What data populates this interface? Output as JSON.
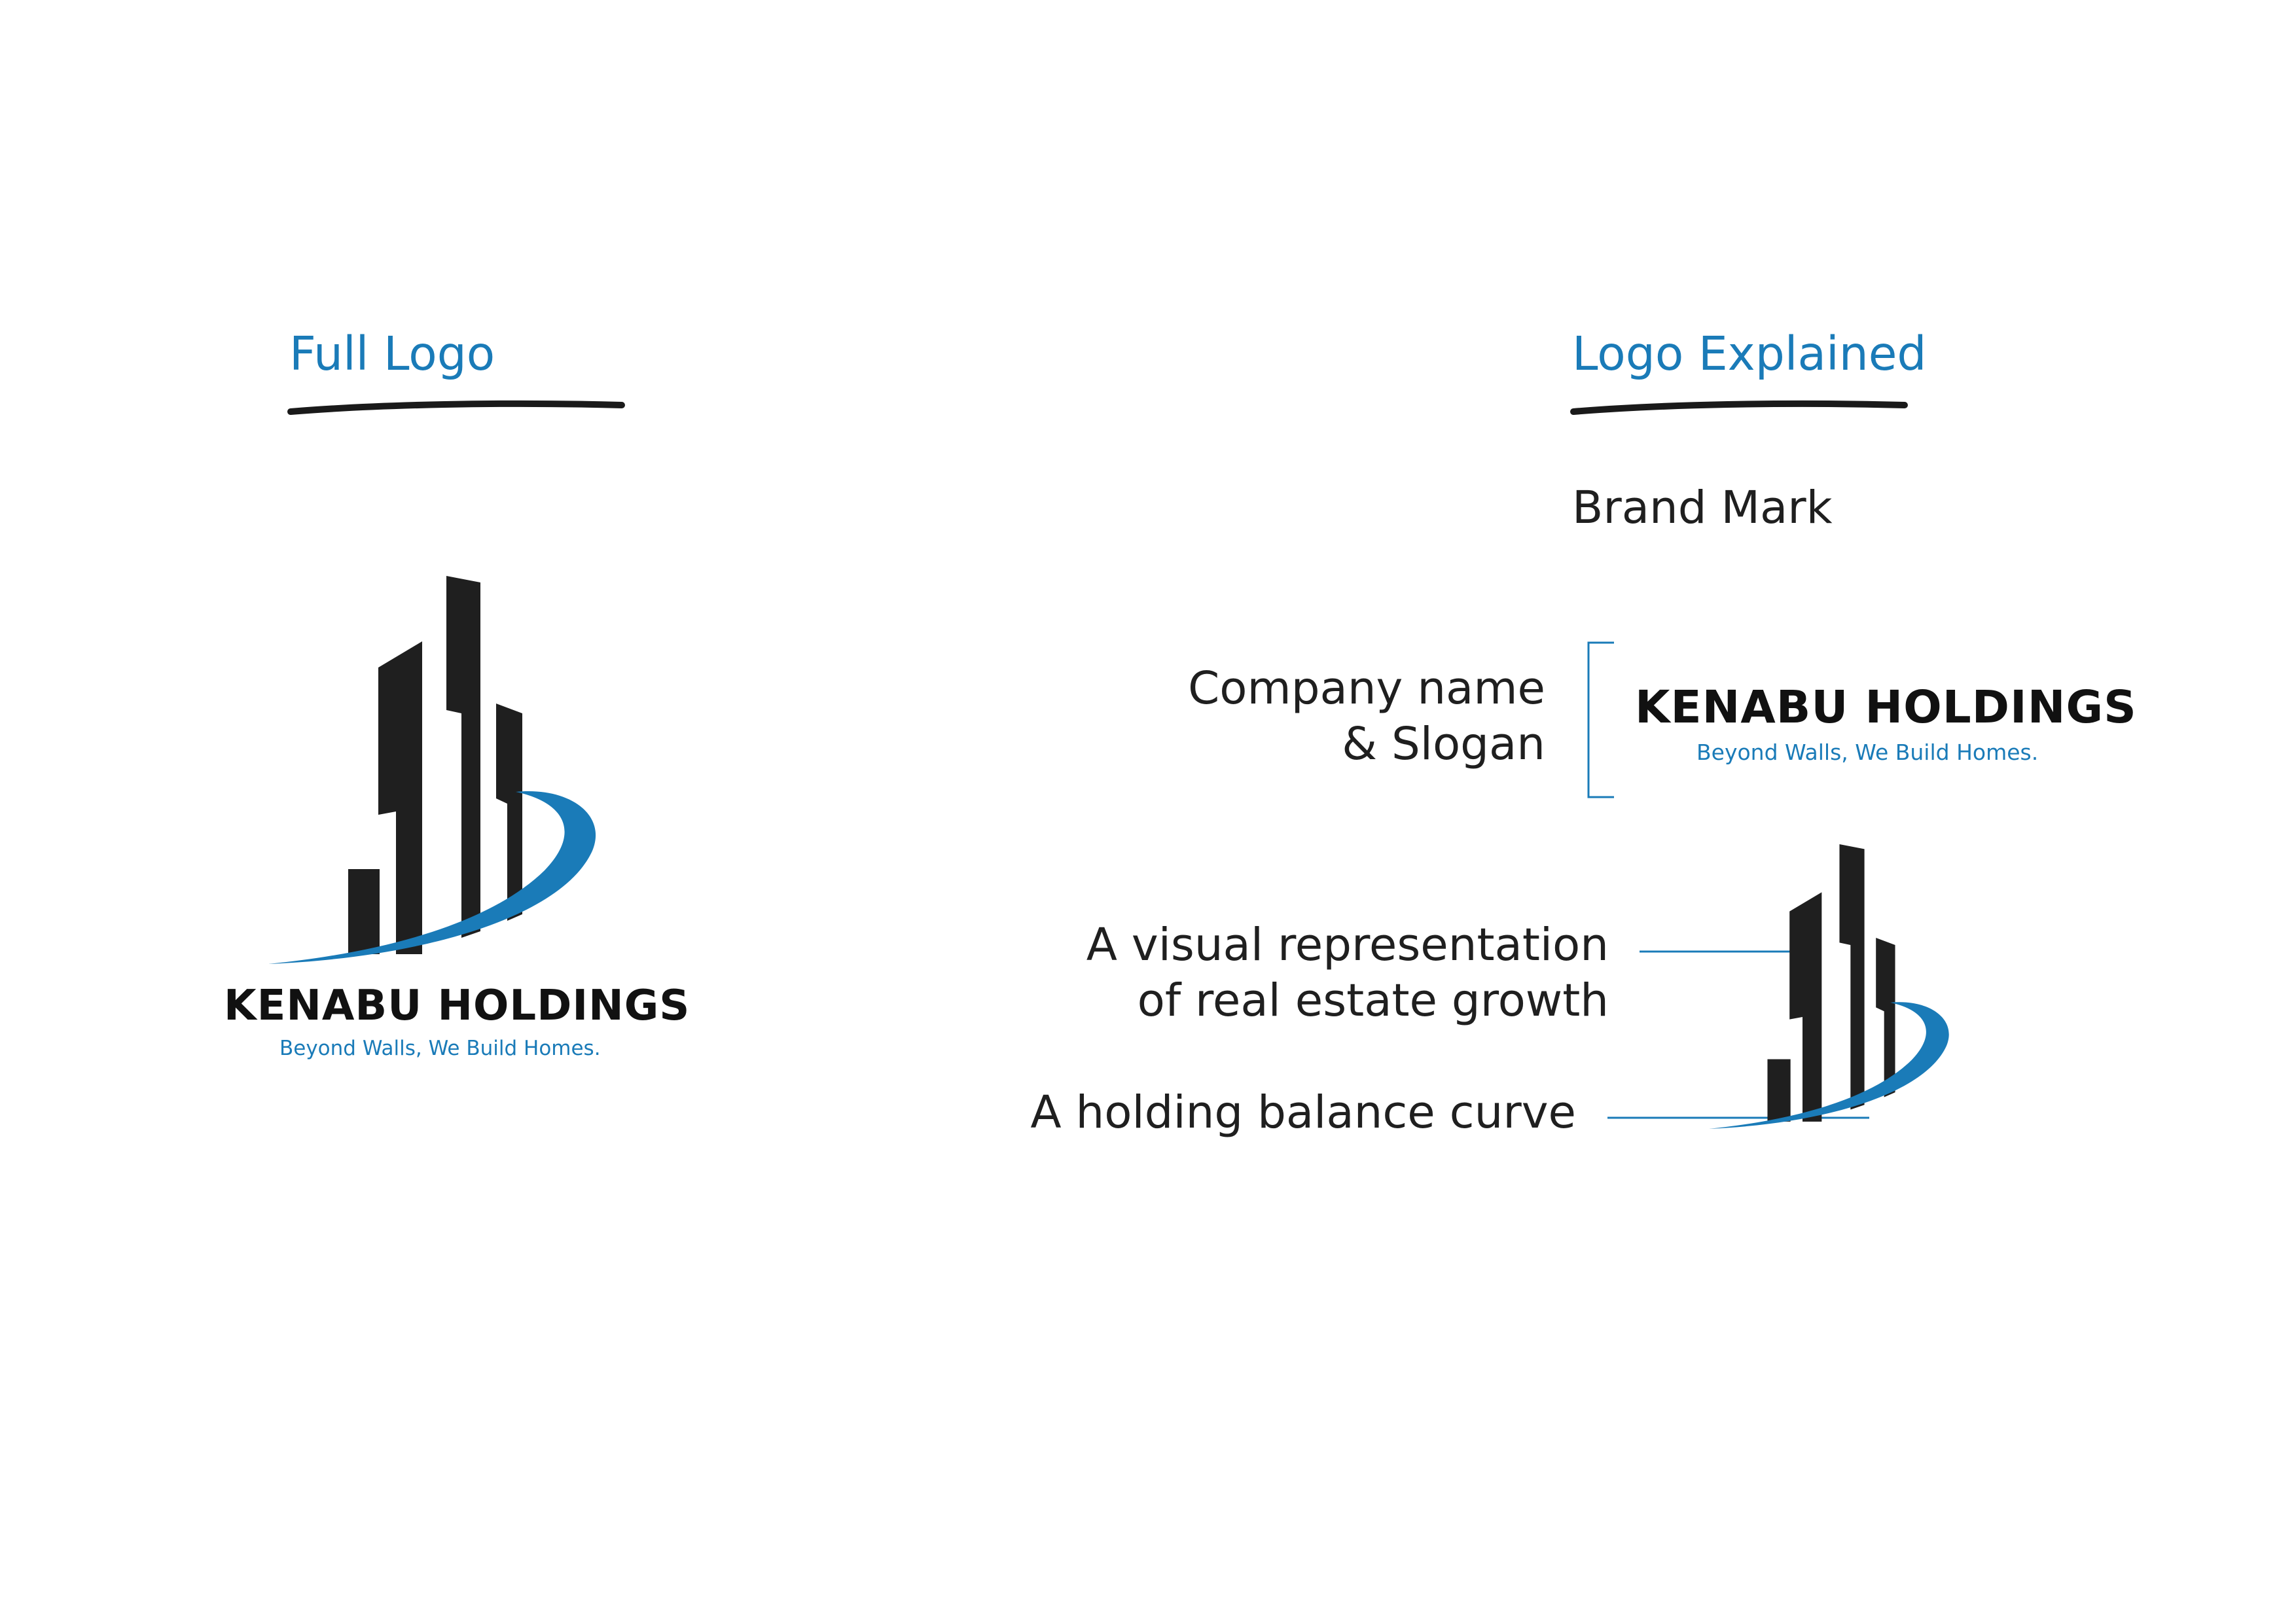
{
  "headings": {
    "full_logo": "Full Logo",
    "logo_explained": "Logo Explained"
  },
  "labels": {
    "brand_mark": "Brand Mark",
    "company_name_line1": "Company name",
    "company_name_line2": "& Slogan",
    "growth_line1": "A visual representation",
    "growth_line2": "of real estate growth",
    "curve": "A holding balance curve"
  },
  "logo": {
    "company_name": "KENABU HOLDINGS",
    "slogan": "Beyond Walls, We Build Homes."
  },
  "colors": {
    "accent_blue": "#1a7bb8",
    "building_black": "#1f1f1f",
    "underline_black": "#1a1a1a"
  }
}
